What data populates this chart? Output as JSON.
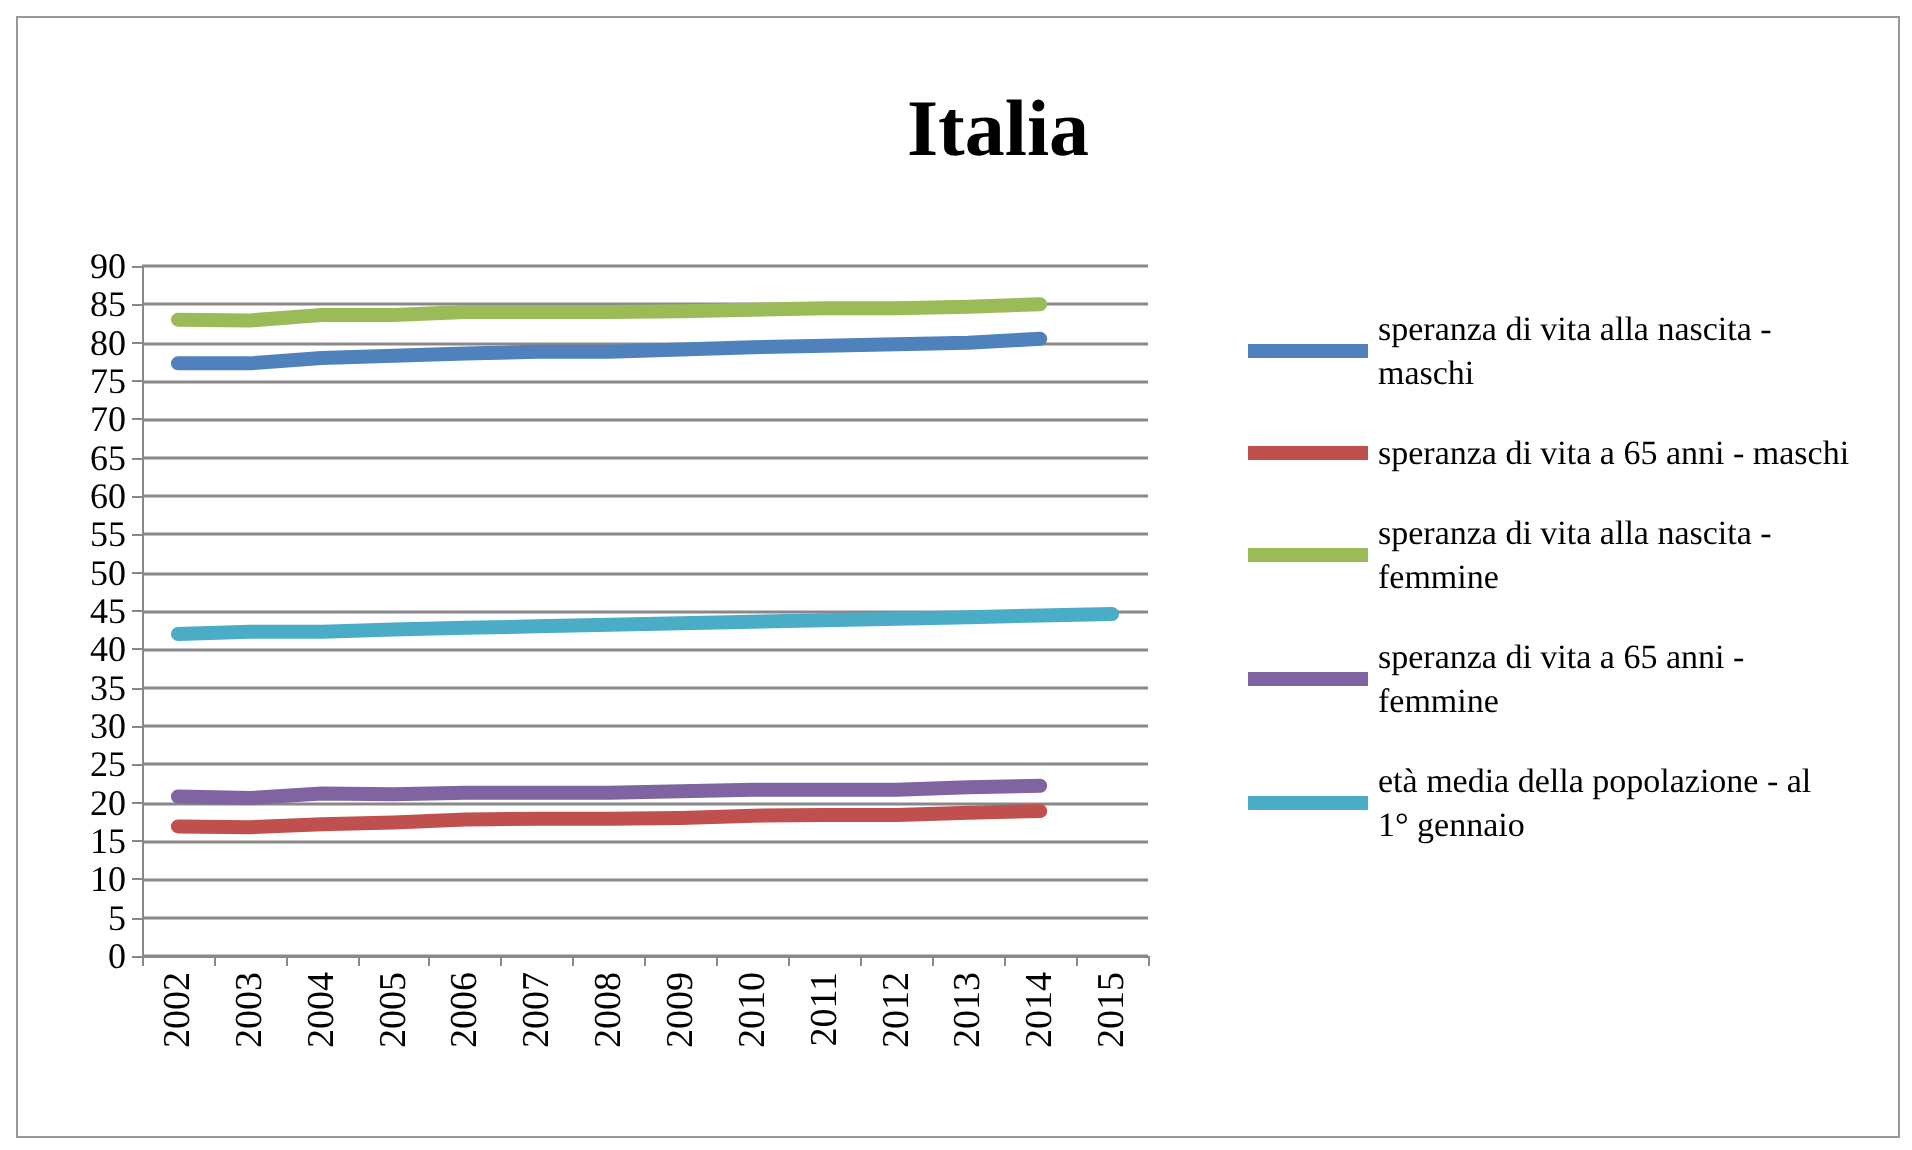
{
  "chart_data": {
    "type": "line",
    "title": "Italia",
    "categories": [
      "2002",
      "2003",
      "2004",
      "2005",
      "2006",
      "2007",
      "2008",
      "2009",
      "2010",
      "2011",
      "2012",
      "2013",
      "2014",
      "2015"
    ],
    "series": [
      {
        "name": "speranza di vita alla nascita - maschi",
        "color": "#4f81bd",
        "values": [
          77.3,
          77.3,
          78.0,
          78.3,
          78.6,
          78.8,
          78.8,
          79.1,
          79.4,
          79.6,
          79.8,
          80.0,
          80.5,
          null
        ]
      },
      {
        "name": "speranza di vita a 65 anni - maschi",
        "color": "#c0504d",
        "values": [
          16.9,
          16.8,
          17.2,
          17.4,
          17.8,
          17.9,
          17.9,
          18.0,
          18.3,
          18.4,
          18.4,
          18.7,
          18.9,
          null
        ]
      },
      {
        "name": "speranza di vita alla nascita - femmine",
        "color": "#9bbb59",
        "values": [
          83.0,
          82.9,
          83.6,
          83.6,
          84.0,
          84.0,
          84.0,
          84.1,
          84.3,
          84.5,
          84.5,
          84.7,
          85.0,
          null
        ]
      },
      {
        "name": "speranza di vita a 65 anni - femmine",
        "color": "#8064a2",
        "values": [
          20.8,
          20.6,
          21.2,
          21.1,
          21.3,
          21.3,
          21.3,
          21.5,
          21.7,
          21.7,
          21.7,
          22.0,
          22.2,
          null
        ]
      },
      {
        "name": "età media della popolazione - al 1° gennaio",
        "color": "#4bacc6",
        "values": [
          42.0,
          42.3,
          42.3,
          42.6,
          42.8,
          43.0,
          43.2,
          43.4,
          43.6,
          43.8,
          44.0,
          44.2,
          44.4,
          44.6
        ]
      }
    ],
    "ylim": [
      0,
      90
    ],
    "yticks": [
      0,
      5,
      10,
      15,
      20,
      25,
      30,
      35,
      40,
      45,
      50,
      55,
      60,
      65,
      70,
      75,
      80,
      85,
      90
    ],
    "grid": "y",
    "legend": "right",
    "marker": "none",
    "line_style": "solid"
  }
}
